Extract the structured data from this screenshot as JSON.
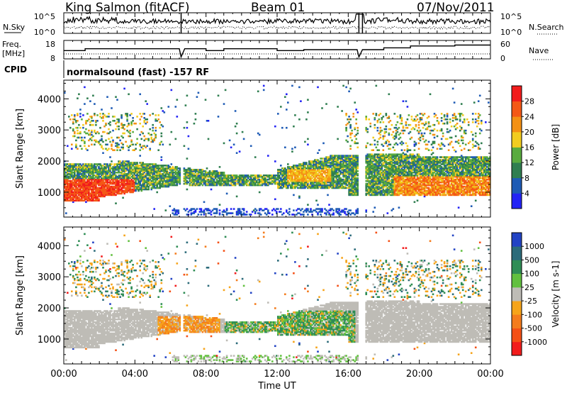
{
  "header": {
    "station": "King Salmon (fitACF)",
    "beam": "Beam 01",
    "date": "07/Nov/2011"
  },
  "cpid_text": "normalsound (fast) -157 RF",
  "chart_data": [
    {
      "type": "line",
      "panel": "noise",
      "ylabel_left": "N.Sky",
      "ylabel_right": "N.Search",
      "yticks": [
        "10^5",
        "10^0"
      ],
      "series": [
        {
          "name": "N.Sky",
          "style": "solid"
        },
        {
          "name": "N.Search",
          "style": "dotted"
        }
      ]
    },
    {
      "type": "line",
      "panel": "frequency",
      "ylabel_left": "Freq. [MHz]",
      "ylabel_right": "Nave",
      "yticks_left": [
        8,
        18
      ],
      "yticks_right": [
        0,
        60
      ],
      "series": [
        {
          "name": "Freq.",
          "style": "solid",
          "points": [
            [
              0,
              12.5
            ],
            [
              1.2,
              12.5
            ],
            [
              1.2,
              13.5
            ],
            [
              6.5,
              13.5
            ],
            [
              6.6,
              9
            ],
            [
              6.8,
              13.5
            ],
            [
              8,
              13.5
            ],
            [
              8,
              12.5
            ],
            [
              9,
              12.5
            ],
            [
              9,
              13.5
            ],
            [
              12,
              13.5
            ],
            [
              12,
              12.5
            ],
            [
              13.5,
              12.5
            ],
            [
              13.5,
              13
            ],
            [
              16.5,
              13
            ],
            [
              16.6,
              9
            ],
            [
              16.8,
              13
            ],
            [
              18,
              13
            ],
            [
              18,
              14
            ],
            [
              19.5,
              14
            ],
            [
              19.5,
              15
            ],
            [
              22,
              15
            ],
            [
              22,
              15.5
            ],
            [
              24,
              15.5
            ]
          ]
        },
        {
          "name": "Nave",
          "style": "dotted"
        }
      ]
    },
    {
      "type": "heatmap",
      "panel": "power",
      "xlabel": "",
      "ylabel": "Slant Range [km]",
      "ylim": [
        200,
        4600
      ],
      "yticks": [
        1000,
        2000,
        3000,
        4000
      ],
      "colorbar": {
        "label": "Power [dB]",
        "ticks": [
          4,
          8,
          12,
          16,
          20,
          24,
          28
        ],
        "colors": [
          "#2323f5",
          "#1e5bb5",
          "#2f7e50",
          "#59ab3f",
          "#f2cc1f",
          "#f49114",
          "#f45816",
          "#f21c1c"
        ]
      }
    },
    {
      "type": "heatmap",
      "panel": "velocity",
      "xlabel": "Time UT",
      "ylabel": "Slant Range [km]",
      "ylim": [
        200,
        4600
      ],
      "yticks": [
        1000,
        2000,
        3000,
        4000
      ],
      "xticks": [
        "00:00",
        "04:00",
        "08:00",
        "12:00",
        "16:00",
        "20:00",
        "00:00"
      ],
      "xlim": [
        0,
        24
      ],
      "colorbar": {
        "label": "Velocity [m s-1]",
        "ticks": [
          "1000",
          "500",
          "100",
          "25",
          "-25",
          "-100",
          "-500",
          "-1000"
        ],
        "colors": [
          "#2243c4",
          "#2c6b7a",
          "#2f8d55",
          "#62c03f",
          "#bebcb6",
          "#f6a41a",
          "#f47c1d",
          "#f45016",
          "#f21c1c"
        ]
      }
    }
  ]
}
